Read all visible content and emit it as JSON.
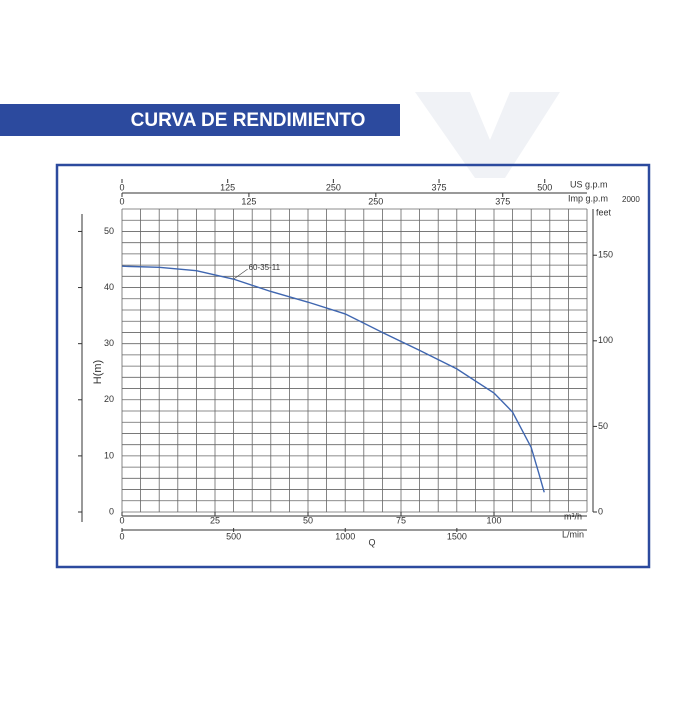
{
  "chart_data": {
    "type": "line",
    "title": "CURVA DE RENDIMIENTO",
    "x_label": "Q",
    "y_label": "H(m)",
    "x_unit": "m³/h",
    "x2_unit": "L/min",
    "x3_unit": "US g.p.m",
    "x4_unit": "Imp g.p.m",
    "y2_unit": "feet",
    "annotation": "2000",
    "xlim": [
      0,
      125
    ],
    "xticks": [
      0,
      25,
      50,
      75,
      100
    ],
    "x2lim": [
      0,
      2083
    ],
    "x2ticks": [
      0,
      500,
      1000,
      1500
    ],
    "x3lim": [
      0,
      550
    ],
    "x3ticks": [
      0,
      125,
      250,
      375,
      500
    ],
    "x4lim": [
      0,
      458
    ],
    "x4ticks": [
      0,
      125,
      250,
      375
    ],
    "ylim": [
      0,
      54
    ],
    "yticks": [
      0,
      10,
      20,
      30,
      40,
      50
    ],
    "y2lim": [
      0,
      177
    ],
    "y2ticks": [
      0,
      50,
      100,
      150
    ],
    "xgrid": [
      0,
      5,
      10,
      15,
      20,
      25,
      30,
      35,
      40,
      45,
      50,
      55,
      60,
      65,
      70,
      75,
      80,
      85,
      90,
      95,
      100,
      105,
      110,
      115,
      120,
      125
    ],
    "ygrid": [
      0,
      2,
      4,
      6,
      8,
      10,
      12,
      14,
      16,
      18,
      20,
      22,
      24,
      26,
      28,
      30,
      32,
      34,
      36,
      38,
      40,
      42,
      44,
      46,
      48,
      50,
      52,
      54
    ],
    "series": [
      {
        "name": "60-35-11",
        "color": "#3f66b0",
        "x": [
          0,
          10,
          20,
          30,
          40,
          50,
          60,
          70,
          80,
          90,
          100,
          105,
          110,
          112,
          113.5
        ],
        "values": [
          43.8,
          43.6,
          43,
          41.5,
          39.3,
          37.4,
          35.3,
          32,
          28.8,
          25.5,
          21.2,
          17.8,
          11.5,
          7,
          3.5
        ]
      }
    ]
  }
}
